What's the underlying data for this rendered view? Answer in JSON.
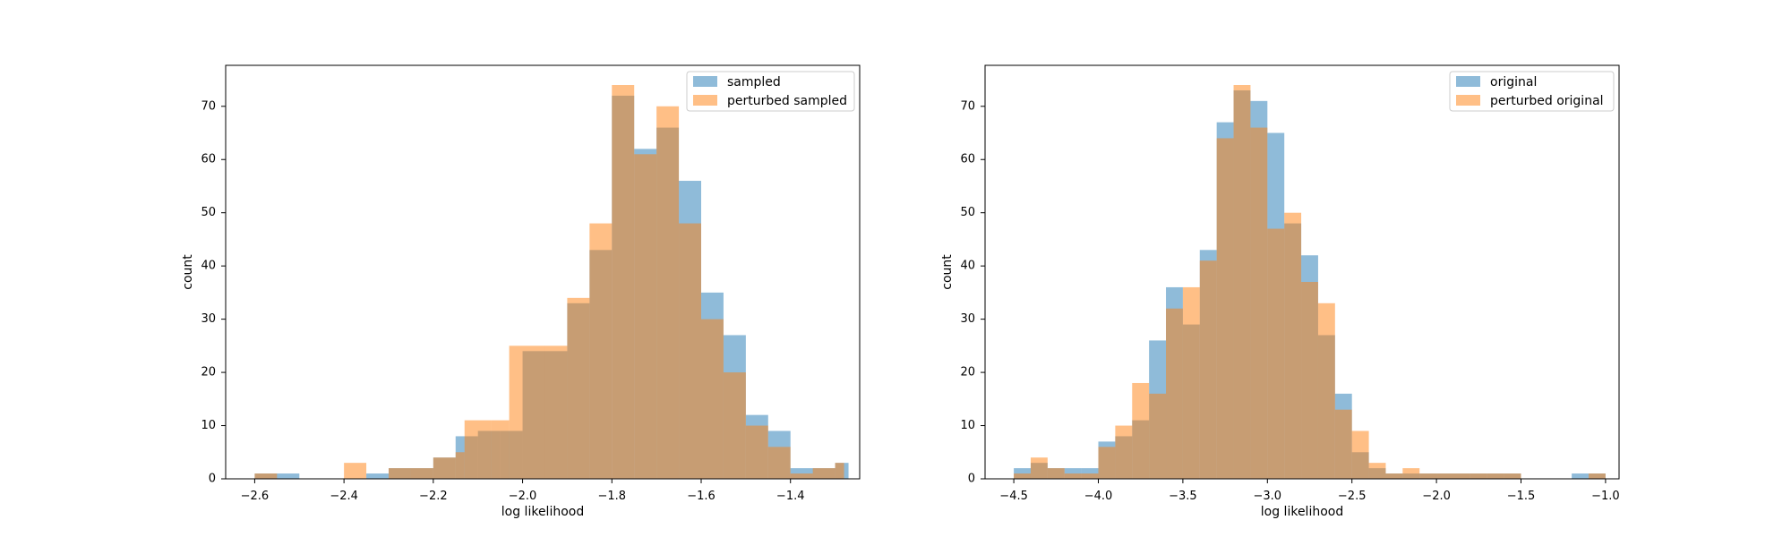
{
  "colors": {
    "blue": "#1f77b4",
    "orange": "#ff7f0e",
    "bar_alpha": 0.5
  },
  "chart_data": [
    {
      "type": "histogram",
      "xlabel": "log likelihood",
      "ylabel": "count",
      "xlim": [
        -2.665,
        -1.245
      ],
      "ylim": [
        0,
        77.7
      ],
      "xticks": [
        -2.6,
        -2.4,
        -2.2,
        -2.0,
        -1.8,
        -1.6,
        -1.4
      ],
      "xtick_labels": [
        "−2.6",
        "−2.4",
        "−2.2",
        "−2.0",
        "−1.8",
        "−1.6",
        "−1.4"
      ],
      "yticks": [
        0,
        10,
        20,
        30,
        40,
        50,
        60,
        70
      ],
      "ytick_labels": [
        "0",
        "10",
        "20",
        "30",
        "40",
        "50",
        "60",
        "70"
      ],
      "legend_position": "upper right",
      "series": [
        {
          "name": "sampled",
          "color": "blue",
          "bins": [
            [
              -2.6,
              -2.5,
              1
            ],
            [
              -2.35,
              -2.3,
              1
            ],
            [
              -2.3,
              -2.2,
              2
            ],
            [
              -2.2,
              -2.15,
              4
            ],
            [
              -2.15,
              -2.1,
              8
            ],
            [
              -2.1,
              -2.05,
              9
            ],
            [
              -2.05,
              -2.0,
              9
            ],
            [
              -2.0,
              -1.9,
              24
            ],
            [
              -1.9,
              -1.85,
              33
            ],
            [
              -1.85,
              -1.8,
              43
            ],
            [
              -1.8,
              -1.75,
              72
            ],
            [
              -1.75,
              -1.7,
              62
            ],
            [
              -1.7,
              -1.65,
              66
            ],
            [
              -1.65,
              -1.6,
              56
            ],
            [
              -1.6,
              -1.55,
              35
            ],
            [
              -1.55,
              -1.5,
              27
            ],
            [
              -1.5,
              -1.45,
              12
            ],
            [
              -1.45,
              -1.4,
              9
            ],
            [
              -1.4,
              -1.3,
              2
            ],
            [
              -1.3,
              -1.27,
              3
            ]
          ]
        },
        {
          "name": "perturbed sampled",
          "color": "orange",
          "bins": [
            [
              -2.6,
              -2.55,
              1
            ],
            [
              -2.4,
              -2.35,
              3
            ],
            [
              -2.3,
              -2.25,
              2
            ],
            [
              -2.25,
              -2.2,
              2
            ],
            [
              -2.2,
              -2.15,
              4
            ],
            [
              -2.15,
              -2.13,
              5
            ],
            [
              -2.13,
              -2.07,
              11
            ],
            [
              -2.07,
              -2.03,
              11
            ],
            [
              -2.03,
              -1.95,
              25
            ],
            [
              -1.95,
              -1.9,
              25
            ],
            [
              -1.9,
              -1.85,
              34
            ],
            [
              -1.85,
              -1.8,
              48
            ],
            [
              -1.8,
              -1.75,
              74
            ],
            [
              -1.75,
              -1.7,
              61
            ],
            [
              -1.7,
              -1.65,
              70
            ],
            [
              -1.65,
              -1.6,
              48
            ],
            [
              -1.6,
              -1.55,
              30
            ],
            [
              -1.55,
              -1.5,
              20
            ],
            [
              -1.5,
              -1.45,
              10
            ],
            [
              -1.45,
              -1.4,
              6
            ],
            [
              -1.4,
              -1.35,
              1
            ],
            [
              -1.35,
              -1.3,
              2
            ],
            [
              -1.3,
              -1.28,
              3
            ]
          ]
        }
      ]
    },
    {
      "type": "histogram",
      "xlabel": "log likelihood",
      "ylabel": "count",
      "xlim": [
        -4.67,
        -0.92
      ],
      "ylim": [
        0,
        77.7
      ],
      "xticks": [
        -4.5,
        -4.0,
        -3.5,
        -3.0,
        -2.5,
        -2.0,
        -1.5,
        -1.0
      ],
      "xtick_labels": [
        "−4.5",
        "−4.0",
        "−3.5",
        "−3.0",
        "−2.5",
        "−2.0",
        "−1.5",
        "−1.0"
      ],
      "yticks": [
        0,
        10,
        20,
        30,
        40,
        50,
        60,
        70
      ],
      "ytick_labels": [
        "0",
        "10",
        "20",
        "30",
        "40",
        "50",
        "60",
        "70"
      ],
      "legend_position": "upper right",
      "series": [
        {
          "name": "original",
          "color": "blue",
          "bins": [
            [
              -4.5,
              -4.4,
              2
            ],
            [
              -4.4,
              -4.3,
              3
            ],
            [
              -4.3,
              -4.2,
              2
            ],
            [
              -4.2,
              -4.1,
              2
            ],
            [
              -4.1,
              -4.0,
              2
            ],
            [
              -4.0,
              -3.9,
              7
            ],
            [
              -3.9,
              -3.8,
              8
            ],
            [
              -3.8,
              -3.7,
              11
            ],
            [
              -3.7,
              -3.6,
              26
            ],
            [
              -3.6,
              -3.5,
              36
            ],
            [
              -3.5,
              -3.4,
              29
            ],
            [
              -3.4,
              -3.3,
              43
            ],
            [
              -3.3,
              -3.2,
              67
            ],
            [
              -3.2,
              -3.1,
              73
            ],
            [
              -3.1,
              -3.0,
              71
            ],
            [
              -3.0,
              -2.9,
              65
            ],
            [
              -2.9,
              -2.8,
              48
            ],
            [
              -2.8,
              -2.7,
              42
            ],
            [
              -2.7,
              -2.6,
              27
            ],
            [
              -2.6,
              -2.5,
              16
            ],
            [
              -2.5,
              -2.4,
              5
            ],
            [
              -2.4,
              -2.3,
              2
            ],
            [
              -2.3,
              -2.2,
              1
            ],
            [
              -2.2,
              -2.1,
              1
            ],
            [
              -2.1,
              -2.0,
              1
            ],
            [
              -2.0,
              -1.9,
              1
            ],
            [
              -1.9,
              -1.8,
              1
            ],
            [
              -1.8,
              -1.7,
              1
            ],
            [
              -1.7,
              -1.6,
              1
            ],
            [
              -1.6,
              -1.5,
              1
            ],
            [
              -1.2,
              -1.1,
              1
            ],
            [
              -1.1,
              -1.0,
              1
            ]
          ]
        },
        {
          "name": "perturbed original",
          "color": "orange",
          "bins": [
            [
              -4.5,
              -4.4,
              1
            ],
            [
              -4.4,
              -4.3,
              4
            ],
            [
              -4.3,
              -4.2,
              2
            ],
            [
              -4.2,
              -4.1,
              1
            ],
            [
              -4.1,
              -4.0,
              1
            ],
            [
              -4.0,
              -3.9,
              6
            ],
            [
              -3.9,
              -3.8,
              10
            ],
            [
              -3.8,
              -3.7,
              18
            ],
            [
              -3.7,
              -3.6,
              16
            ],
            [
              -3.6,
              -3.5,
              32
            ],
            [
              -3.5,
              -3.4,
              36
            ],
            [
              -3.4,
              -3.3,
              41
            ],
            [
              -3.3,
              -3.2,
              64
            ],
            [
              -3.2,
              -3.1,
              74
            ],
            [
              -3.1,
              -3.0,
              66
            ],
            [
              -3.0,
              -2.9,
              47
            ],
            [
              -2.9,
              -2.8,
              50
            ],
            [
              -2.8,
              -2.7,
              37
            ],
            [
              -2.7,
              -2.6,
              33
            ],
            [
              -2.6,
              -2.5,
              13
            ],
            [
              -2.5,
              -2.4,
              9
            ],
            [
              -2.4,
              -2.3,
              3
            ],
            [
              -2.3,
              -2.2,
              1
            ],
            [
              -2.2,
              -2.1,
              2
            ],
            [
              -2.1,
              -2.0,
              1
            ],
            [
              -2.0,
              -1.9,
              1
            ],
            [
              -1.9,
              -1.8,
              1
            ],
            [
              -1.8,
              -1.7,
              1
            ],
            [
              -1.7,
              -1.6,
              1
            ],
            [
              -1.6,
              -1.5,
              1
            ],
            [
              -1.1,
              -1.0,
              1
            ]
          ]
        }
      ]
    }
  ]
}
